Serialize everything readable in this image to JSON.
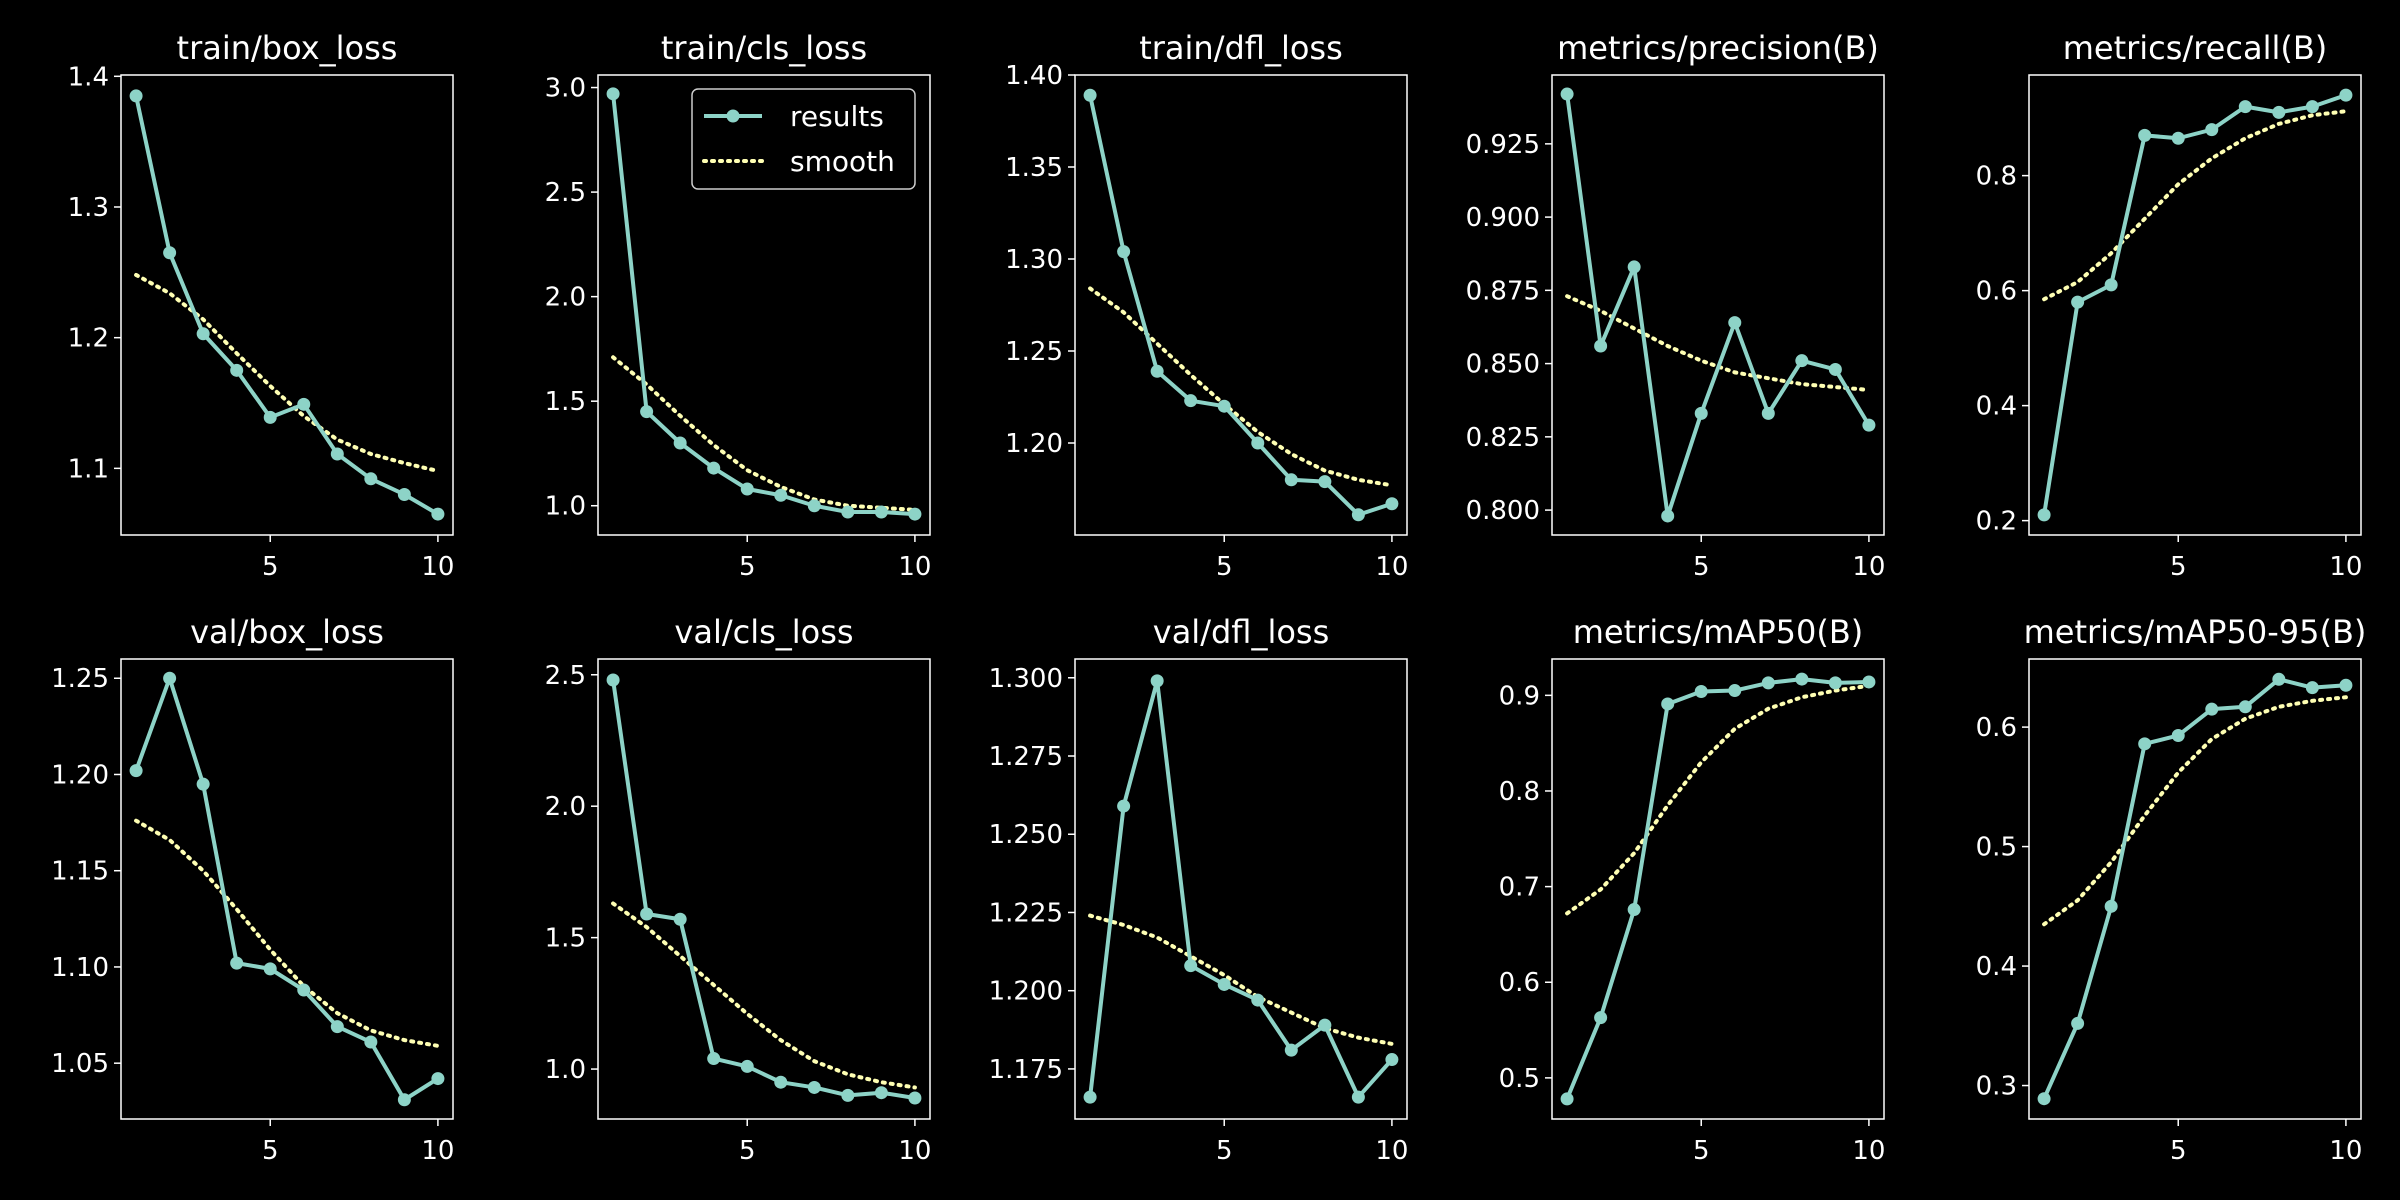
{
  "colors": {
    "background": "#000000",
    "results": "#8dd3c7",
    "smooth": "#ffffb3",
    "axes": "#ffffff"
  },
  "legend": {
    "placement": "top-right",
    "results_label": "results",
    "smooth_label": "smooth"
  },
  "chart_data": [
    {
      "type": "line",
      "title": "train/box_loss",
      "x": [
        1,
        2,
        3,
        4,
        5,
        6,
        7,
        8,
        9,
        10
      ],
      "series": [
        {
          "name": "results",
          "values": [
            1.385,
            1.265,
            1.203,
            1.175,
            1.139,
            1.149,
            1.111,
            1.092,
            1.08,
            1.065
          ]
        },
        {
          "name": "smooth",
          "values": [
            1.248,
            1.234,
            1.214,
            1.188,
            1.163,
            1.14,
            1.122,
            1.111,
            1.104,
            1.098
          ]
        }
      ],
      "xticks": [
        5,
        10
      ],
      "xlim": [
        0.55,
        10.45
      ],
      "yticks": [
        1.1,
        1.2,
        1.3,
        1.4
      ],
      "yticklabels": [
        "1.1",
        "1.2",
        "1.3",
        "1.4"
      ],
      "ylim": [
        1.049,
        1.401
      ]
    },
    {
      "type": "line",
      "title": "train/cls_loss",
      "x": [
        1,
        2,
        3,
        4,
        5,
        6,
        7,
        8,
        9,
        10
      ],
      "series": [
        {
          "name": "results",
          "values": [
            2.97,
            1.45,
            1.3,
            1.18,
            1.08,
            1.05,
            1.0,
            0.97,
            0.97,
            0.96
          ]
        },
        {
          "name": "smooth",
          "values": [
            1.71,
            1.58,
            1.43,
            1.29,
            1.17,
            1.09,
            1.03,
            1.0,
            0.99,
            0.98
          ]
        }
      ],
      "xticks": [
        5,
        10
      ],
      "xlim": [
        0.55,
        10.45
      ],
      "yticks": [
        1.0,
        1.5,
        2.0,
        2.5,
        3.0
      ],
      "yticklabels": [
        "1.0",
        "1.5",
        "2.0",
        "2.5",
        "3.0"
      ],
      "ylim": [
        0.86,
        3.06
      ]
    },
    {
      "type": "line",
      "title": "train/dfl_loss",
      "x": [
        1,
        2,
        3,
        4,
        5,
        6,
        7,
        8,
        9,
        10
      ],
      "series": [
        {
          "name": "results",
          "values": [
            1.389,
            1.304,
            1.239,
            1.223,
            1.22,
            1.2,
            1.18,
            1.179,
            1.161,
            1.167
          ]
        },
        {
          "name": "smooth",
          "values": [
            1.284,
            1.271,
            1.254,
            1.237,
            1.221,
            1.206,
            1.194,
            1.185,
            1.18,
            1.177
          ]
        }
      ],
      "xticks": [
        5,
        10
      ],
      "xlim": [
        0.55,
        10.45
      ],
      "yticks": [
        1.2,
        1.25,
        1.3,
        1.35,
        1.4
      ],
      "yticklabels": [
        "1.20",
        "1.25",
        "1.30",
        "1.35",
        "1.40"
      ],
      "ylim": [
        1.15,
        1.4
      ]
    },
    {
      "type": "line",
      "title": "metrics/precision(B)",
      "x": [
        1,
        2,
        3,
        4,
        5,
        6,
        7,
        8,
        9,
        10
      ],
      "series": [
        {
          "name": "results",
          "values": [
            0.942,
            0.856,
            0.883,
            0.798,
            0.833,
            0.864,
            0.833,
            0.851,
            0.848,
            0.829
          ]
        },
        {
          "name": "smooth",
          "values": [
            0.873,
            0.868,
            0.862,
            0.856,
            0.851,
            0.847,
            0.845,
            0.843,
            0.842,
            0.841
          ]
        }
      ],
      "xticks": [
        5,
        10
      ],
      "xlim": [
        0.55,
        10.45
      ],
      "yticks": [
        0.8,
        0.825,
        0.85,
        0.875,
        0.9,
        0.925
      ],
      "yticklabels": [
        "0.800",
        "0.825",
        "0.850",
        "0.875",
        "0.900",
        "0.925"
      ],
      "ylim": [
        0.7915,
        0.9485
      ]
    },
    {
      "type": "line",
      "title": "metrics/recall(B)",
      "x": [
        1,
        2,
        3,
        4,
        5,
        6,
        7,
        8,
        9,
        10
      ],
      "series": [
        {
          "name": "results",
          "values": [
            0.21,
            0.58,
            0.61,
            0.87,
            0.865,
            0.88,
            0.92,
            0.91,
            0.92,
            0.94
          ]
        },
        {
          "name": "smooth",
          "values": [
            0.585,
            0.615,
            0.665,
            0.725,
            0.785,
            0.83,
            0.865,
            0.89,
            0.905,
            0.912
          ]
        }
      ],
      "xticks": [
        5,
        10
      ],
      "xlim": [
        0.55,
        10.45
      ],
      "yticks": [
        0.2,
        0.4,
        0.6,
        0.8
      ],
      "yticklabels": [
        "0.2",
        "0.4",
        "0.6",
        "0.8"
      ],
      "ylim": [
        0.175,
        0.975
      ]
    },
    {
      "type": "line",
      "title": "val/box_loss",
      "x": [
        1,
        2,
        3,
        4,
        5,
        6,
        7,
        8,
        9,
        10
      ],
      "series": [
        {
          "name": "results",
          "values": [
            1.202,
            1.25,
            1.195,
            1.102,
            1.099,
            1.088,
            1.069,
            1.061,
            1.031,
            1.042
          ]
        },
        {
          "name": "smooth",
          "values": [
            1.176,
            1.166,
            1.15,
            1.13,
            1.109,
            1.09,
            1.076,
            1.067,
            1.062,
            1.059
          ]
        }
      ],
      "xticks": [
        5,
        10
      ],
      "xlim": [
        0.55,
        10.45
      ],
      "yticks": [
        1.05,
        1.1,
        1.15,
        1.2,
        1.25
      ],
      "yticklabels": [
        "1.05",
        "1.10",
        "1.15",
        "1.20",
        "1.25"
      ],
      "ylim": [
        1.021,
        1.26
      ]
    },
    {
      "type": "line",
      "title": "val/cls_loss",
      "x": [
        1,
        2,
        3,
        4,
        5,
        6,
        7,
        8,
        9,
        10
      ],
      "series": [
        {
          "name": "results",
          "values": [
            2.48,
            1.59,
            1.57,
            1.04,
            1.01,
            0.95,
            0.93,
            0.9,
            0.91,
            0.89
          ]
        },
        {
          "name": "smooth",
          "values": [
            1.63,
            1.54,
            1.43,
            1.32,
            1.21,
            1.11,
            1.03,
            0.98,
            0.95,
            0.93
          ]
        }
      ],
      "xticks": [
        5,
        10
      ],
      "xlim": [
        0.55,
        10.45
      ],
      "yticks": [
        1.0,
        1.5,
        2.0,
        2.5
      ],
      "yticklabels": [
        "1.0",
        "1.5",
        "2.0",
        "2.5"
      ],
      "ylim": [
        0.81,
        2.56
      ]
    },
    {
      "type": "line",
      "title": "val/dfl_loss",
      "x": [
        1,
        2,
        3,
        4,
        5,
        6,
        7,
        8,
        9,
        10
      ],
      "series": [
        {
          "name": "results",
          "values": [
            1.166,
            1.259,
            1.299,
            1.208,
            1.202,
            1.197,
            1.181,
            1.189,
            1.166,
            1.178
          ]
        },
        {
          "name": "smooth",
          "values": [
            1.224,
            1.221,
            1.217,
            1.211,
            1.205,
            1.198,
            1.193,
            1.188,
            1.185,
            1.183
          ]
        }
      ],
      "xticks": [
        5,
        10
      ],
      "xlim": [
        0.55,
        10.45
      ],
      "yticks": [
        1.175,
        1.2,
        1.225,
        1.25,
        1.275,
        1.3
      ],
      "yticklabels": [
        "1.175",
        "1.200",
        "1.225",
        "1.250",
        "1.275",
        "1.300"
      ],
      "ylim": [
        1.159,
        1.306
      ]
    },
    {
      "type": "line",
      "title": "metrics/mAP50(B)",
      "x": [
        1,
        2,
        3,
        4,
        5,
        6,
        7,
        8,
        9,
        10
      ],
      "series": [
        {
          "name": "results",
          "values": [
            0.478,
            0.563,
            0.676,
            0.891,
            0.904,
            0.905,
            0.913,
            0.917,
            0.913,
            0.914
          ]
        },
        {
          "name": "smooth",
          "values": [
            0.672,
            0.697,
            0.735,
            0.785,
            0.83,
            0.865,
            0.886,
            0.898,
            0.905,
            0.91
          ]
        }
      ],
      "xticks": [
        5,
        10
      ],
      "xlim": [
        0.55,
        10.45
      ],
      "yticks": [
        0.5,
        0.6,
        0.7,
        0.8,
        0.9
      ],
      "yticklabels": [
        "0.5",
        "0.6",
        "0.7",
        "0.8",
        "0.9"
      ],
      "ylim": [
        0.457,
        0.938
      ]
    },
    {
      "type": "line",
      "title": "metrics/mAP50-95(B)",
      "x": [
        1,
        2,
        3,
        4,
        5,
        6,
        7,
        8,
        9,
        10
      ],
      "series": [
        {
          "name": "results",
          "values": [
            0.289,
            0.352,
            0.45,
            0.586,
            0.593,
            0.615,
            0.617,
            0.64,
            0.633,
            0.635
          ]
        },
        {
          "name": "smooth",
          "values": [
            0.435,
            0.455,
            0.487,
            0.526,
            0.562,
            0.59,
            0.607,
            0.617,
            0.622,
            0.625
          ]
        }
      ],
      "xticks": [
        5,
        10
      ],
      "xlim": [
        0.55,
        10.45
      ],
      "yticks": [
        0.3,
        0.4,
        0.5,
        0.6
      ],
      "yticklabels": [
        "0.3",
        "0.4",
        "0.5",
        "0.6"
      ],
      "ylim": [
        0.272,
        0.657
      ]
    }
  ]
}
